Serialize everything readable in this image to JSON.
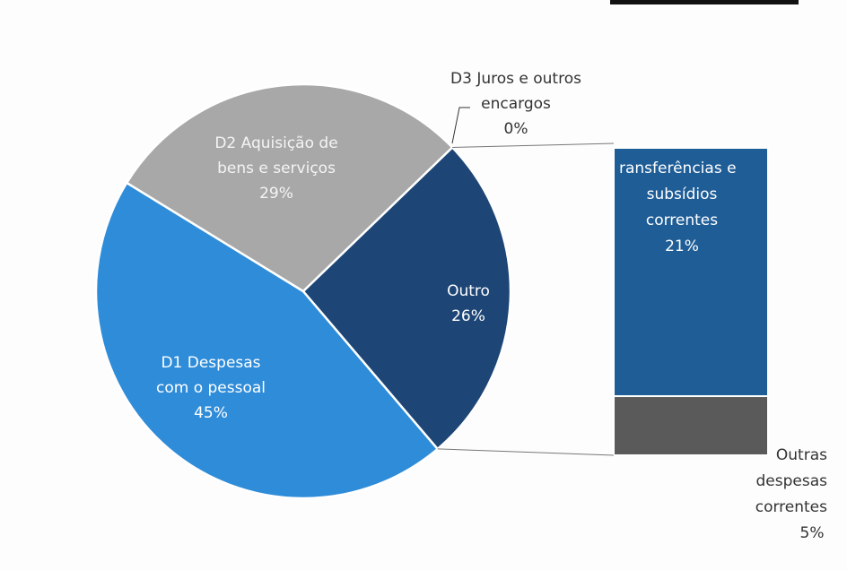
{
  "chart_data": {
    "type": "bar-of-pie",
    "pie": {
      "labels": [
        [
          "D1 Despesas",
          "com o pessoal"
        ],
        [
          "D2 Aquisição de",
          "bens e serviços"
        ],
        [
          "D3 Juros e outros",
          "encargos"
        ],
        [
          "Outro"
        ]
      ],
      "values": [
        45,
        29,
        0,
        26
      ],
      "value_labels": [
        "45%",
        "29%",
        "0%",
        "26%"
      ],
      "colors": [
        "#2e8cd9",
        "#a8a8a8",
        "#2a5a8c",
        "#1d4676"
      ]
    },
    "bar": {
      "labels": [
        [
          "ransferências e",
          "subsídios",
          "correntes"
        ],
        [
          "Outras",
          "despesas",
          "correntes"
        ]
      ],
      "values": [
        21,
        5
      ],
      "value_labels": [
        "21%",
        "5%"
      ],
      "colors": [
        "#1f5d97",
        "#5a5a5a"
      ]
    }
  }
}
